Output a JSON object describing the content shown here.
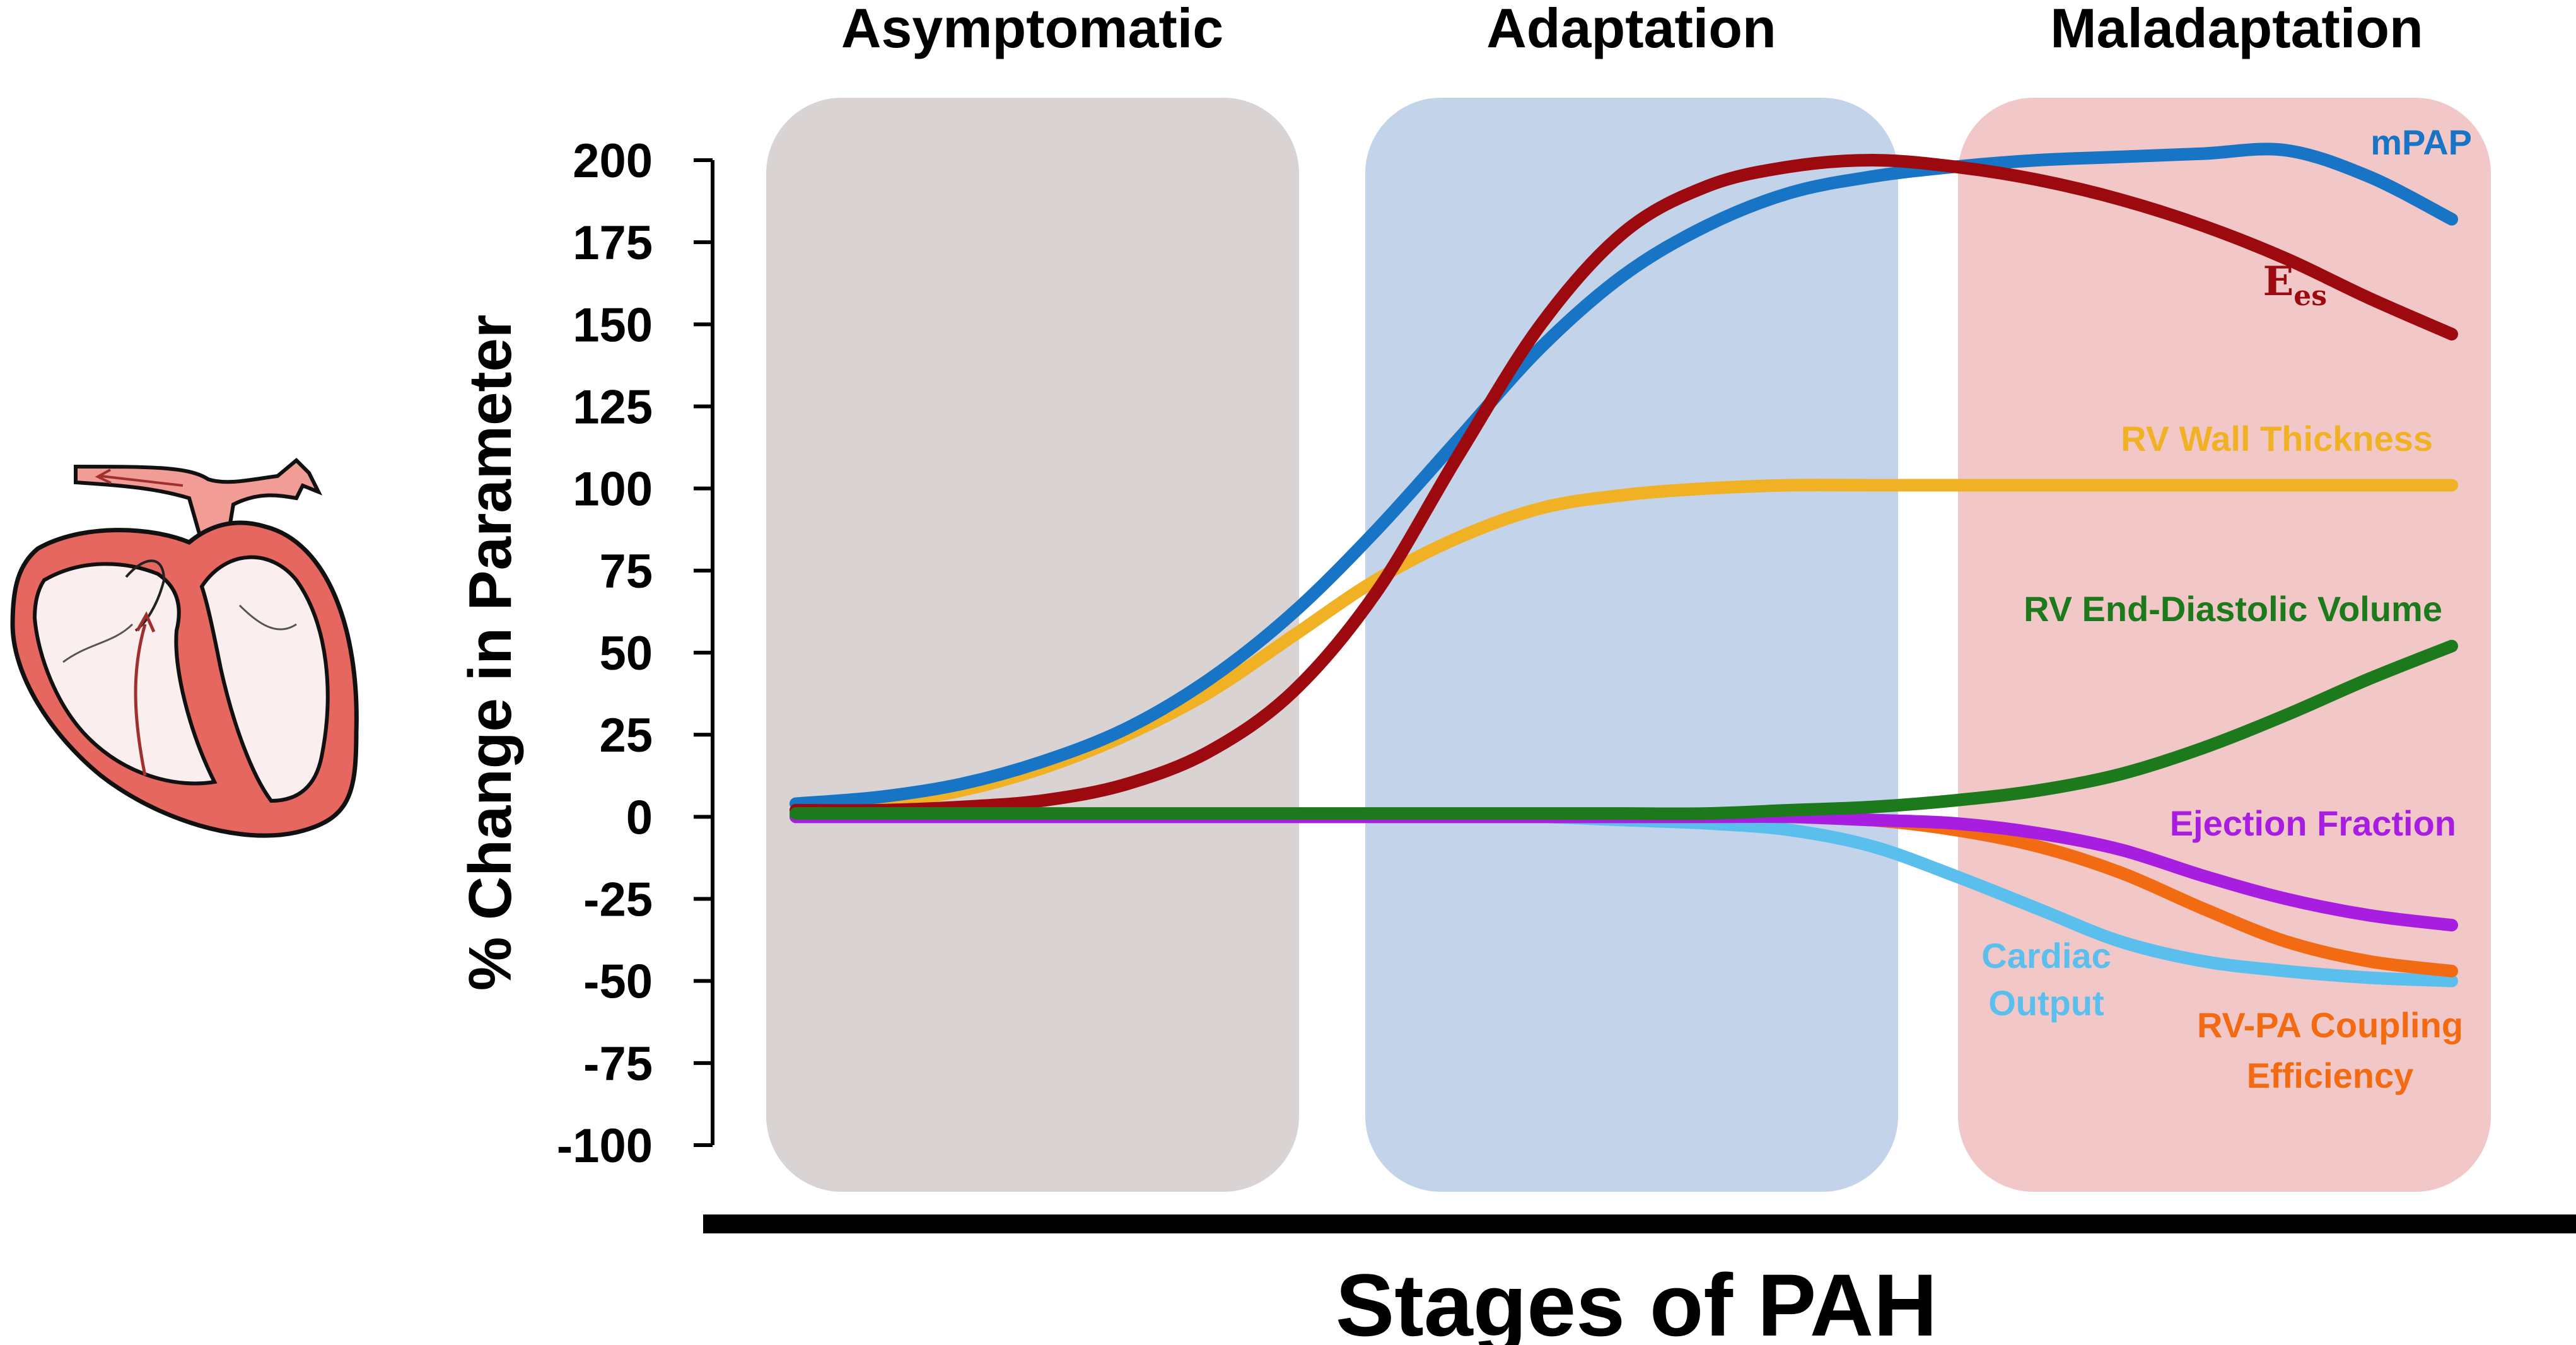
{
  "chart_data": {
    "type": "line",
    "stages": [
      "Asymptomatic",
      "Adaptation",
      "Maladaptation"
    ],
    "stage_colors": [
      "#d9d4d3",
      "#c3d4ea",
      "#f2c7c8"
    ],
    "ylabel": "% Change in Parameter",
    "xlabel": "Stages of PAH",
    "ylim": [
      -100,
      200
    ],
    "yticks": [
      200,
      175,
      150,
      125,
      100,
      75,
      50,
      25,
      0,
      -25,
      -50,
      -75,
      -100
    ],
    "ytick_labels": [
      "200",
      "175",
      "150",
      "125",
      "100",
      "75",
      "50",
      "25",
      "0",
      "-25",
      "-50",
      "-75",
      "-100"
    ],
    "grid": false,
    "x": [
      0,
      5,
      10,
      15,
      20,
      25,
      30,
      35,
      40,
      45,
      50,
      55,
      60,
      65,
      70,
      75,
      80,
      85,
      90,
      95,
      100
    ],
    "series": [
      {
        "name": "mPAP",
        "color": "#1874c4",
        "values": [
          4,
          6,
          10,
          17,
          27,
          42,
          62,
          87,
          115,
          143,
          165,
          180,
          190,
          195,
          198,
          200,
          201,
          202,
          203,
          195,
          182
        ]
      },
      {
        "name": "E_es",
        "color": "#9c0a10",
        "values": [
          2,
          2,
          3,
          5,
          10,
          20,
          38,
          68,
          110,
          150,
          178,
          192,
          198,
          200,
          198,
          194,
          188,
          180,
          170,
          158,
          147
        ]
      },
      {
        "name": "RV Wall Thickness",
        "color": "#f0b224",
        "values": [
          2,
          4,
          8,
          15,
          25,
          38,
          55,
          72,
          85,
          94,
          98,
          100,
          101,
          101,
          101,
          101,
          101,
          101,
          101,
          101,
          101
        ]
      },
      {
        "name": "RV End-Diastolic Volume",
        "color": "#1c7a1c",
        "values": [
          1,
          1,
          1,
          1,
          1,
          1,
          1,
          1,
          1,
          1,
          1,
          1,
          2,
          3,
          5,
          8,
          13,
          21,
          31,
          42,
          52
        ]
      },
      {
        "name": "Ejection Fraction",
        "color": "#a81ee0",
        "values": [
          0,
          0,
          0,
          0,
          0,
          0,
          0,
          0,
          0,
          0,
          0,
          0,
          0,
          -1,
          -2,
          -5,
          -10,
          -18,
          -25,
          -30,
          -33
        ]
      },
      {
        "name": "Cardiac Output",
        "color": "#5bbfee",
        "values": [
          0,
          0,
          0,
          0,
          0,
          0,
          0,
          0,
          0,
          0,
          -1,
          -2,
          -4,
          -9,
          -18,
          -28,
          -38,
          -44,
          -47,
          -49,
          -50
        ]
      },
      {
        "name": "RV-PA Coupling Efficiency",
        "color": "#f26a12",
        "values": [
          0,
          0,
          0,
          0,
          0,
          0,
          0,
          0,
          0,
          0,
          0,
          0,
          0,
          -1,
          -4,
          -9,
          -17,
          -28,
          -38,
          -44,
          -47
        ]
      }
    ],
    "labels": {
      "mpap": "mPAP",
      "ees_main": "E",
      "ees_sub": "es",
      "rv_wall": "RV Wall Thickness",
      "rv_edv": "RV End-Diastolic Volume",
      "ef": "Ejection Fraction",
      "co_line1": "Cardiac",
      "co_line2": "Output",
      "coupling_line1": "RV-PA Coupling",
      "coupling_line2": "Efficiency"
    }
  },
  "icon": "heart-anatomy-icon"
}
